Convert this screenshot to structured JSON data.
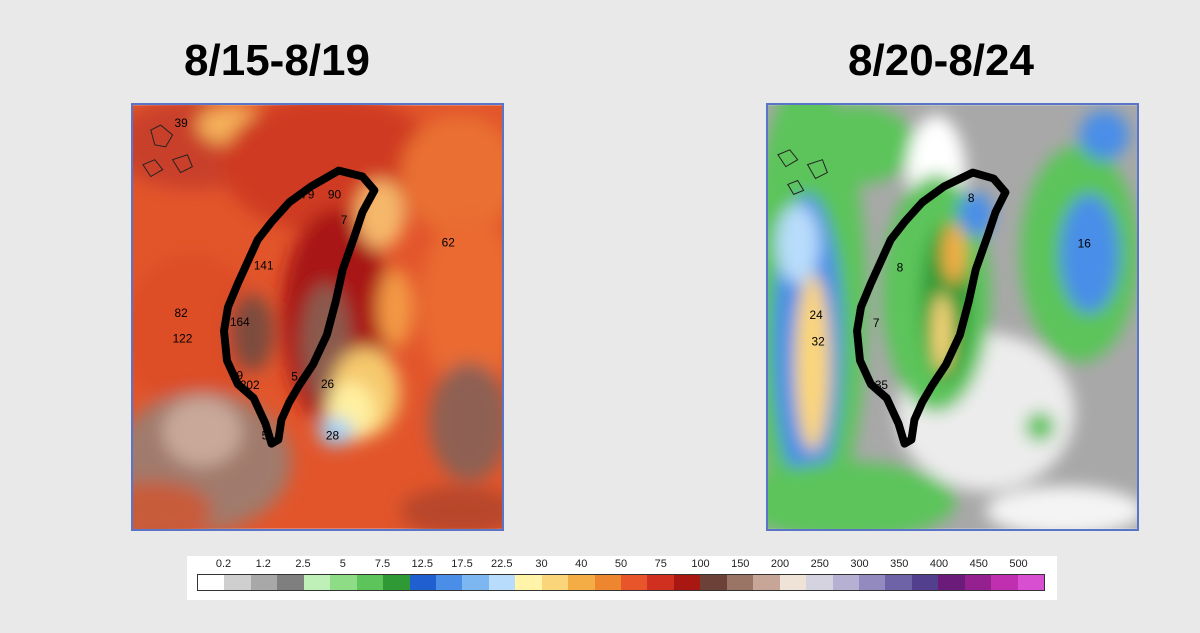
{
  "panels": [
    {
      "title": "8/15-8/19",
      "values": [
        "39",
        "79",
        "90",
        "7",
        "62",
        "141",
        "82",
        "164",
        "122",
        "5",
        "26",
        "19",
        "202",
        "5",
        "28"
      ]
    },
    {
      "title": "8/20-8/24",
      "values": [
        "8",
        "16",
        "8",
        "24",
        "7",
        "32",
        "35"
      ]
    }
  ],
  "legend": {
    "labels": [
      "0.2",
      "1.2",
      "2.5",
      "5",
      "7.5",
      "12.5",
      "17.5",
      "22.5",
      "30",
      "40",
      "50",
      "75",
      "100",
      "150",
      "200",
      "250",
      "300",
      "350",
      "400",
      "450",
      "500"
    ],
    "colors": [
      "#ffffff",
      "#cfcfcf",
      "#a8a8a8",
      "#7f7f7f",
      "#bff0b8",
      "#8fdc86",
      "#5cc45a",
      "#2f9a35",
      "#1f5fd0",
      "#4a8ee8",
      "#7cb7f2",
      "#b8dcfb",
      "#fff4a8",
      "#fbd57a",
      "#f4ad45",
      "#ee8630",
      "#e8552a",
      "#cf3020",
      "#a81712",
      "#6c4137",
      "#9a7465",
      "#c7a597",
      "#efe2d6",
      "#d5d3e0",
      "#b6b0d2",
      "#938bbf",
      "#6f63a8",
      "#52408f",
      "#6b1b7a",
      "#95208f",
      "#c12fb1",
      "#d84fd2"
    ]
  }
}
